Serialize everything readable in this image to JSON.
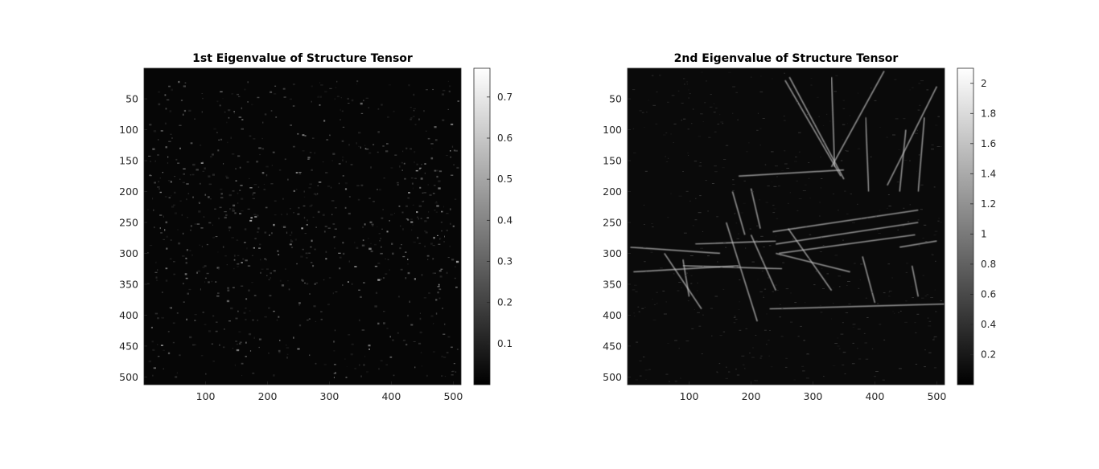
{
  "chart_data": [
    {
      "type": "heatmap",
      "title": "1st Eigenvalue of Structure Tensor",
      "colormap": "gray",
      "xticks": [
        100,
        200,
        300,
        400,
        500
      ],
      "yticks": [
        50,
        100,
        150,
        200,
        250,
        300,
        350,
        400,
        450,
        500
      ],
      "xlim": [
        0.5,
        512.5
      ],
      "ylim": [
        0.5,
        512.5
      ],
      "y_direction": "reverse",
      "colorbar": {
        "ticks": [
          0.1,
          0.2,
          0.3,
          0.4,
          0.5,
          0.6,
          0.7
        ],
        "tick_labels": [
          "0.1",
          "0.2",
          "0.3",
          "0.4",
          "0.5",
          "0.6",
          "0.7"
        ],
        "range": [
          0.0,
          0.77
        ]
      }
    },
    {
      "type": "heatmap",
      "title": "2nd Eigenvalue of Structure Tensor",
      "colormap": "gray",
      "xticks": [
        100,
        200,
        300,
        400,
        500
      ],
      "yticks": [
        50,
        100,
        150,
        200,
        250,
        300,
        350,
        400,
        450,
        500
      ],
      "xlim": [
        0.5,
        512.5
      ],
      "ylim": [
        0.5,
        512.5
      ],
      "y_direction": "reverse",
      "colorbar": {
        "ticks": [
          0.2,
          0.4,
          0.6,
          0.8,
          1,
          1.2,
          1.4,
          1.6,
          1.8,
          2
        ],
        "tick_labels": [
          "0.2",
          "0.4",
          "0.6",
          "0.8",
          "1",
          "1.2",
          "1.4",
          "1.6",
          "1.8",
          "2"
        ],
        "range": [
          0.0,
          2.1
        ]
      }
    }
  ]
}
